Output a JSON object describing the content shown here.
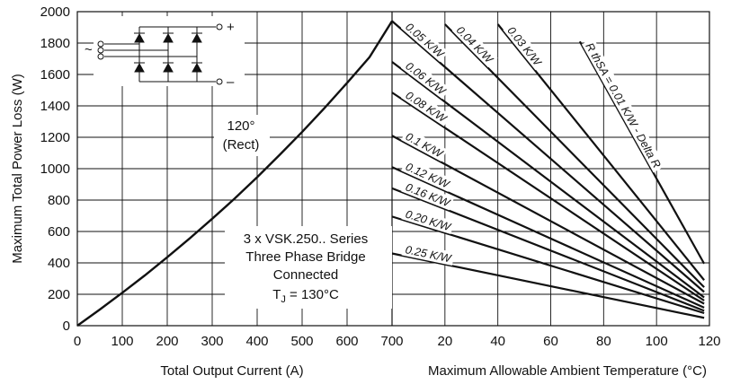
{
  "chart_data": {
    "type": "line",
    "panels": [
      {
        "name": "left",
        "xlabel": "Total Output Current (A)",
        "ylabel": "Maximum Total Power Loss (W)",
        "xlim": [
          0,
          700
        ],
        "ylim": [
          0,
          2000
        ],
        "xticks": [
          "0",
          "100",
          "200",
          "300",
          "400",
          "500",
          "600",
          "700"
        ],
        "yticks": [
          "0",
          "200",
          "400",
          "600",
          "800",
          "1000",
          "1200",
          "1400",
          "1600",
          "1800",
          "2000"
        ],
        "series": [
          {
            "name": "120° (Rect)",
            "x": [
              0,
              50,
              100,
              150,
              200,
              250,
              300,
              350,
              400,
              450,
              500,
              550,
              600,
              650,
              700
            ],
            "y": [
              0,
              103,
              210,
              320,
              436,
              556,
              681,
              810,
              946,
              1088,
              1234,
              1387,
              1546,
              1711,
              1940
            ]
          }
        ],
        "annotations": [
          "120°",
          "(Rect)",
          "3 x VSK.250.. Series",
          "Three Phase Bridge",
          "Connected",
          "T",
          "J",
          " = 130°C"
        ]
      },
      {
        "name": "right",
        "xlabel": "Maximum Allowable Ambient Temperature (°C)",
        "xlim": [
          0,
          120
        ],
        "ylim": [
          0,
          2000
        ],
        "xticks": [
          "20",
          "40",
          "60",
          "80",
          "100",
          "120"
        ],
        "series": [
          {
            "name": "R thSA = 0.01 K/W - Delta R",
            "x": [
              71,
              118
            ],
            "y": [
              1810,
              395
            ]
          },
          {
            "name": "0.03 K/W",
            "x": [
              40,
              118
            ],
            "y": [
              1920,
              290
            ]
          },
          {
            "name": "0.04 K/W",
            "x": [
              20,
              118
            ],
            "y": [
              1920,
              245
            ]
          },
          {
            "name": "0.05 K/W",
            "x": [
              0,
              118
            ],
            "y": [
              1940,
              215
            ]
          },
          {
            "name": "0.06 K/W",
            "x": [
              0,
              118
            ],
            "y": [
              1680,
              180
            ]
          },
          {
            "name": "0.08 K/W",
            "x": [
              0,
              118
            ],
            "y": [
              1485,
              160
            ]
          },
          {
            "name": "0.1 K/W",
            "x": [
              0,
              118
            ],
            "y": [
              1210,
              140
            ]
          },
          {
            "name": "0.12 K/W",
            "x": [
              0,
              118
            ],
            "y": [
              1010,
              115
            ]
          },
          {
            "name": "0.16 K/W",
            "x": [
              0,
              118
            ],
            "y": [
              875,
              95
            ]
          },
          {
            "name": "0.20 K/W",
            "x": [
              0,
              118
            ],
            "y": [
              695,
              80
            ]
          },
          {
            "name": "0.25 K/W",
            "x": [
              0,
              118
            ],
            "y": [
              460,
              50
            ]
          }
        ]
      }
    ],
    "inset": {
      "labels": [
        "+",
        "–",
        "~"
      ]
    },
    "grid": true
  }
}
